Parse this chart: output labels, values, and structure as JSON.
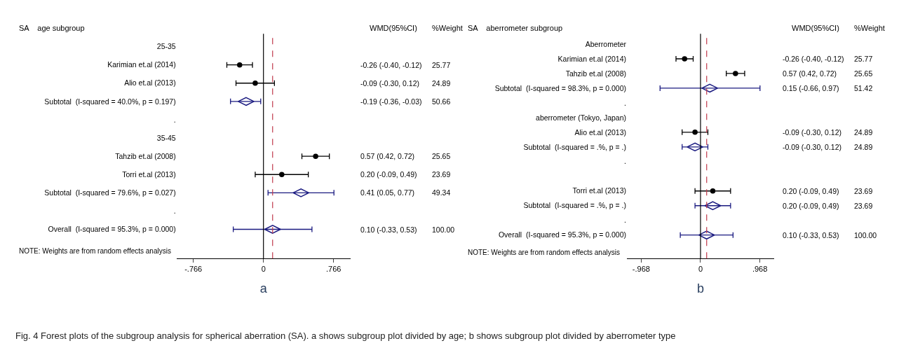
{
  "chart_data": [
    {
      "type": "scatter",
      "orientation": "horizontal",
      "title": "SA    age subgroup",
      "xlabel": "a",
      "categories": [
        "25-35",
        "Karimian et.al (2014)",
        "Alio et.al (2013)",
        "Subtotal  (I-squared = 40.0%, p = 0.197)",
        ".",
        "35-45",
        "Tahzib et.al (2008)",
        "Torri et.al (2013)",
        "Subtotal  (I-squared = 79.6%, p = 0.027)",
        ".",
        "Overall  (I-squared = 95.3%, p = 0.000)"
      ],
      "series": [
        {
          "color": "#000000",
          "marker": "circle",
          "values": [
            null,
            -0.26,
            -0.09,
            null,
            null,
            null,
            0.57,
            0.2,
            null,
            null,
            null
          ],
          "errors": [
            null,
            [
              -0.4,
              -0.12
            ],
            [
              -0.3,
              0.12
            ],
            null,
            null,
            null,
            [
              0.42,
              0.72
            ],
            [
              -0.09,
              0.49
            ],
            null,
            null,
            null
          ]
        },
        {
          "color": "#1a1a80",
          "marker": "diamond",
          "values": [
            null,
            null,
            null,
            -0.19,
            null,
            null,
            null,
            null,
            0.41,
            null,
            0.1
          ],
          "errors": [
            null,
            null,
            null,
            [
              -0.36,
              -0.03
            ],
            null,
            null,
            null,
            null,
            [
              0.05,
              0.77
            ],
            null,
            [
              -0.33,
              0.53
            ]
          ]
        }
      ],
      "xlim": [
        -0.95,
        0.95
      ],
      "xticks": [
        {
          "value": -0.766,
          "label": "-.766"
        },
        0,
        {
          "value": 0.766,
          "label": ".766"
        }
      ],
      "ref_lines": [
        {
          "axis": "x",
          "value": 0,
          "color": "#000000",
          "line_style": "solid"
        },
        {
          "axis": "x",
          "value": 0.1,
          "color": "#c0394b",
          "line_style": "dashed"
        }
      ],
      "annotations": [
        "WMD(95%CI)",
        "%Weight",
        "NOTE: Weights are from random effects analysis",
        "-0.26 (-0.40, -0.12)",
        "-0.09 (-0.30, 0.12)",
        "-0.19 (-0.36, -0.03)",
        "0.57 (0.42, 0.72)",
        "0.20 (-0.09, 0.49)",
        "0.41 (0.05, 0.77)",
        "0.10 (-0.33, 0.53)",
        "25.77",
        "24.89",
        "50.66",
        "25.65",
        "23.69",
        "49.34",
        "100.00"
      ]
    },
    {
      "type": "scatter",
      "orientation": "horizontal",
      "title": "SA    aberrometer subgroup",
      "xlabel": "b",
      "categories": [
        "Aberrometer",
        "Karimian et.al (2014)",
        "Tahzib et.al (2008)",
        "Subtotal  (I-squared = 98.3%, p = 0.000)",
        ".",
        "aberrometer (Tokyo, Japan)",
        "Alio et.al (2013)",
        "Subtotal  (I-squared = .%, p = .)",
        ".",
        null,
        "Torri et.al (2013)",
        "Subtotal  (I-squared = .%, p = .)",
        ".",
        "Overall  (I-squared = 95.3%, p = 0.000)"
      ],
      "series": [
        {
          "color": "#000000",
          "marker": "circle",
          "values": [
            null,
            -0.26,
            0.57,
            null,
            null,
            null,
            -0.09,
            null,
            null,
            null,
            0.2,
            null,
            null,
            null
          ],
          "errors": [
            null,
            [
              -0.4,
              -0.12
            ],
            [
              0.42,
              0.72
            ],
            null,
            null,
            null,
            [
              -0.3,
              0.12
            ],
            null,
            null,
            null,
            [
              -0.09,
              0.49
            ],
            null,
            null,
            null
          ]
        },
        {
          "color": "#1a1a80",
          "marker": "diamond",
          "values": [
            null,
            null,
            null,
            0.15,
            null,
            null,
            null,
            -0.09,
            null,
            null,
            null,
            0.2,
            null,
            0.1
          ],
          "errors": [
            null,
            null,
            null,
            [
              -0.66,
              0.97
            ],
            null,
            null,
            null,
            [
              -0.3,
              0.12
            ],
            null,
            null,
            null,
            [
              -0.09,
              0.49
            ],
            null,
            [
              -0.33,
              0.53
            ]
          ]
        }
      ],
      "xlim": [
        -1.2,
        1.2
      ],
      "xticks": [
        {
          "value": -0.968,
          "label": "-.968"
        },
        0,
        {
          "value": 0.968,
          "label": ".968"
        }
      ],
      "ref_lines": [
        {
          "axis": "x",
          "value": 0,
          "color": "#000000",
          "line_style": "solid"
        },
        {
          "axis": "x",
          "value": 0.1,
          "color": "#c0394b",
          "line_style": "dashed"
        }
      ],
      "annotations": [
        "WMD(95%CI)",
        "%Weight",
        "NOTE: Weights are from random effects analysis",
        "-0.26 (-0.40, -0.12)",
        "0.57 (0.42, 0.72)",
        "0.15 (-0.66, 0.97)",
        "-0.09 (-0.30, 0.12)",
        "-0.09 (-0.30, 0.12)",
        "0.20 (-0.09, 0.49)",
        "0.20 (-0.09, 0.49)",
        "0.10 (-0.33, 0.53)",
        "25.77",
        "25.65",
        "51.42",
        "24.89",
        "24.89",
        "23.69",
        "23.69",
        "100.00",
        "Fig. 4 Forest plots of the subgroup analysis for spherical aberration (SA). a shows subgroup plot divided by age; b shows subgroup plot divided by aberrometer type"
      ]
    }
  ]
}
